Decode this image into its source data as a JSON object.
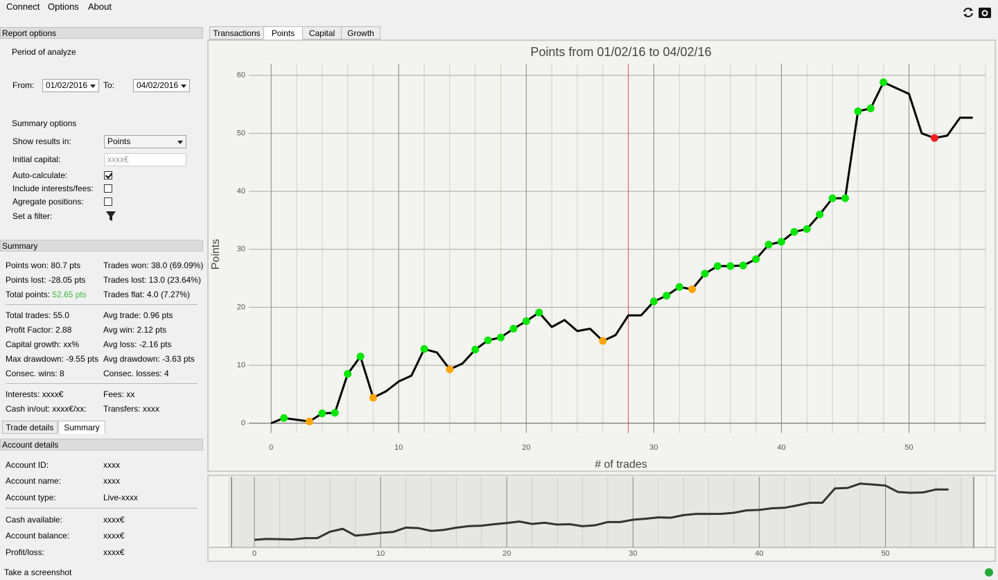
{
  "menu": [
    "Connect",
    "Options",
    "About"
  ],
  "main_tabs": {
    "tabs": [
      "Transactions",
      "Points",
      "Capital",
      "Growth"
    ],
    "active": 1
  },
  "report_options": {
    "title": "Report options",
    "period": "Period of analyze",
    "from_label": "From:",
    "from": "01/02/2016",
    "to_label": "To:",
    "to": "04/02/2016",
    "summary_options": "Summary options",
    "show_results_label": "Show results in:",
    "show_results": "Points",
    "initial_capital_label": "Initial capital:",
    "initial_capital_placeholder": "xxxx€",
    "checkboxes": [
      {
        "label": "Auto-calculate:",
        "checked": true
      },
      {
        "label": "Include interests/fees:",
        "checked": false
      },
      {
        "label": "Agregate positions:",
        "checked": false
      }
    ],
    "filter_label": "Set a filter:"
  },
  "summary": {
    "title": "Summary",
    "groups": [
      [
        [
          {
            "label": "Points won:",
            "value": "80.7 pts"
          },
          {
            "label": "Trades won:",
            "value": "38.0 (69.09%)"
          }
        ],
        [
          {
            "label": "Points lost:",
            "value": "-28.05 pts"
          },
          {
            "label": "Trades lost:",
            "value": "13.0 (23.64%)"
          }
        ],
        [
          {
            "label": "Total points:",
            "value": "52.65 pts",
            "color": "#3dbb3d"
          },
          {
            "label": "Trades flat:",
            "value": "4.0 (7.27%)"
          }
        ]
      ],
      [
        [
          {
            "label": "Total trades:",
            "value": "55.0"
          },
          {
            "label": "Avg trade:",
            "value": "0.96 pts"
          }
        ],
        [
          {
            "label": "Profit Factor:",
            "value": "2.88"
          },
          {
            "label": "Avg win:",
            "value": "2.12 pts"
          }
        ],
        [
          {
            "label": "Capital growth:",
            "value": "xx%"
          },
          {
            "label": "Avg loss:",
            "value": "-2.16 pts"
          }
        ],
        [
          {
            "label": "Max drawdown:",
            "value": "-9.55 pts"
          },
          {
            "label": "Avg drawdown:",
            "value": "-3.63 pts"
          }
        ],
        [
          {
            "label": "Consec. wins:",
            "value": "8"
          },
          {
            "label": "Consec. losses:",
            "value": "4"
          }
        ]
      ],
      [
        [
          {
            "label": "Interests:",
            "value": "xxxx€"
          },
          {
            "label": "Fees:",
            "value": "xx"
          }
        ],
        [
          {
            "label": "Cash in/out:",
            "value": "xxxx€/xx:"
          },
          {
            "label": "Transfers:",
            "value": "xxxx"
          }
        ]
      ]
    ]
  },
  "left_tabs": {
    "tabs": [
      "Trade details",
      "Summary"
    ],
    "active": 1
  },
  "account_details": {
    "title": "Account details",
    "groups": [
      [
        {
          "label": "Account ID:",
          "value": "xxxx"
        },
        {
          "label": "Account name:",
          "value": "xxxx"
        },
        {
          "label": "Account type:",
          "value": "Live-xxxx"
        }
      ],
      [
        {
          "label": "Cash available:",
          "value": "xxxx€"
        },
        {
          "label": "Account balance:",
          "value": "xxxx€"
        },
        {
          "label": "Profit/loss:",
          "value": "xxxx€"
        }
      ]
    ]
  },
  "status": "Take a screenshot",
  "chart_data": {
    "type": "line",
    "title": "Points from 01/02/16 to 04/02/16",
    "x_label": "# of trades",
    "y_label": "Points",
    "x": [
      0,
      1,
      2,
      3,
      4,
      5,
      6,
      7,
      8,
      9,
      10,
      11,
      12,
      13,
      14,
      15,
      16,
      17,
      18,
      19,
      20,
      21,
      22,
      23,
      24,
      25,
      26,
      27,
      28,
      29,
      30,
      31,
      32,
      33,
      34,
      35,
      36,
      37,
      38,
      39,
      40,
      41,
      42,
      43,
      44,
      45,
      46,
      47,
      48,
      49,
      50,
      51,
      52,
      53,
      54,
      55
    ],
    "values": [
      0,
      0.9,
      0.6,
      0.3,
      1.7,
      1.8,
      8.5,
      11.5,
      4.4,
      5.5,
      7.2,
      8.2,
      12.8,
      12.2,
      9.3,
      10.3,
      12.7,
      14.3,
      14.8,
      16.3,
      17.6,
      19.1,
      16.6,
      17.8,
      15.9,
      16.3,
      14.2,
      15.2,
      18.6,
      18.6,
      21.0,
      22.0,
      23.5,
      23.1,
      25.8,
      27.1,
      27.1,
      27.2,
      28.3,
      30.8,
      31.3,
      33.0,
      33.5,
      36.0,
      38.8,
      38.8,
      53.8,
      54.3,
      58.8,
      57.8,
      56.8,
      50.0,
      49.2,
      49.6,
      52.7,
      52.7
    ],
    "marker_colors": [
      null,
      "#00e600",
      null,
      "#ffa500",
      "#00e600",
      "#00e600",
      "#00e600",
      "#00e600",
      "#ffa500",
      null,
      null,
      null,
      "#00e600",
      null,
      "#ffa500",
      null,
      "#00e600",
      "#00e600",
      "#00e600",
      "#00e600",
      "#00e600",
      "#00e600",
      null,
      null,
      null,
      null,
      "#ffa500",
      null,
      null,
      null,
      "#00e600",
      "#00e600",
      "#00e600",
      "#ffa500",
      "#00e600",
      "#00e600",
      "#00e600",
      "#00e600",
      "#00e600",
      "#00e600",
      "#00e600",
      "#00e600",
      "#00e600",
      "#00e600",
      "#00e600",
      "#00e600",
      "#00e600",
      "#00e600",
      "#00e600",
      null,
      null,
      null,
      "#ff1a1a",
      null,
      null,
      null
    ],
    "color": "#000000",
    "vline": 28,
    "vline_color": "#e05555",
    "xlim": [
      -1.75,
      56
    ],
    "ylim": [
      -1.7,
      62
    ],
    "xticks": [
      0,
      10,
      20,
      30,
      40,
      50
    ],
    "yticks": [
      0,
      10,
      20,
      30,
      40,
      50,
      60
    ],
    "grid": true,
    "navigator": {
      "xlim": [
        -3.57,
        58.7
      ],
      "ylim": [
        -8,
        66
      ],
      "color": "#333333"
    }
  }
}
